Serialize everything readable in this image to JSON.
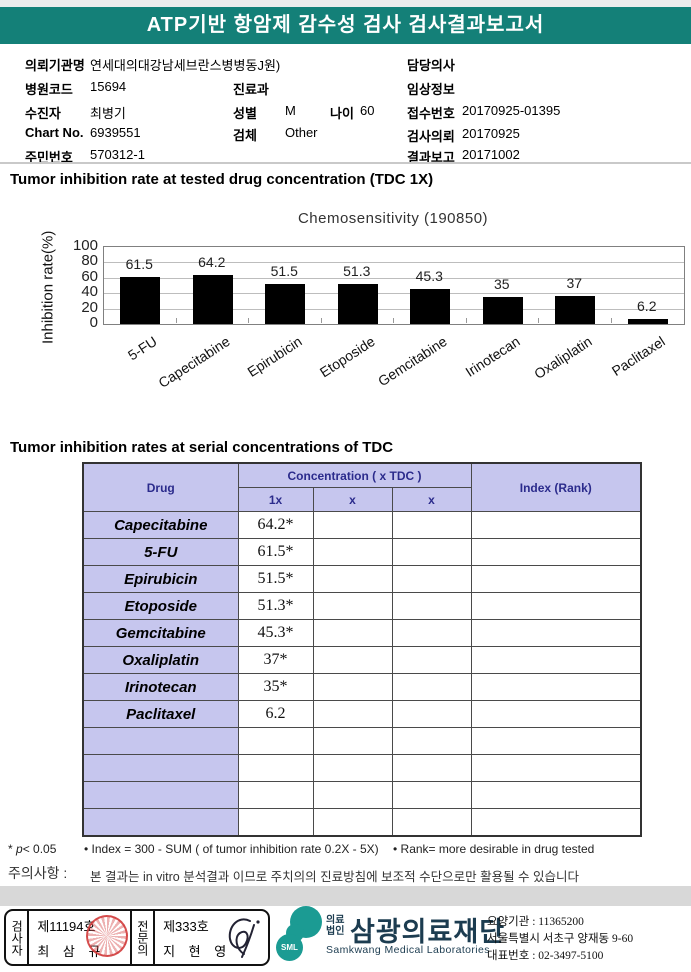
{
  "page": {
    "title_bar": "ATP기반 항암제 감수성 검사 검사결과보고서"
  },
  "patient_info": {
    "org_label": "의뢰기관명",
    "org_value": "연세대의대강남세브란스병병동J원)",
    "hospital_code_label": "병원코드",
    "hospital_code": "15694",
    "patient_label": "수진자",
    "patient_name": "최병기",
    "chart_no_label": "Chart No.",
    "chart_no": "6939551",
    "resident_no_label": "주민번호",
    "resident_no": "570312-1",
    "dept_label": "진료과",
    "dept_value": "",
    "sex_label": "성별",
    "sex_value": "M",
    "age_label": "나이",
    "age_value": "60",
    "specimen_label": "검체",
    "specimen_value": "Other",
    "doctor_label": "담당의사",
    "doctor_value": "",
    "clinical_label": "임상정보",
    "clinical_value": "",
    "receipt_label": "접수번호",
    "receipt_no": "20170925-01395",
    "request_label": "검사의뢰",
    "request_date": "20170925",
    "report_label": "결과보고",
    "report_date": "20171002"
  },
  "section1_title": "Tumor inhibition rate at tested drug concentration (TDC 1X)",
  "chart_data": {
    "type": "bar",
    "title": "Chemosensitivity (190850)",
    "ylabel": "Inhibition rate(%)",
    "categories": [
      "5-FU",
      "Capecitabine",
      "Epirubicin",
      "Etoposide",
      "Gemcitabine",
      "Irinotecan",
      "Oxaliplatin",
      "Paclitaxel"
    ],
    "values": [
      61.5,
      64.2,
      51.5,
      51.3,
      45.3,
      35,
      37,
      6.2
    ],
    "ylim": [
      0,
      100
    ],
    "yticks": [
      0,
      20,
      40,
      60,
      80,
      100
    ],
    "grid": true,
    "bar_color": "#000000",
    "legend": "none"
  },
  "section2_title": "Tumor inhibition rates at serial concentrations of TDC",
  "table": {
    "col_drug": "Drug",
    "col_concentration": "Concentration ( x TDC )",
    "col_index": "Index (Rank)",
    "sub_cols": [
      "1x",
      "x",
      "x"
    ],
    "rows": [
      {
        "drug": "Capecitabine",
        "c1": "64.2*",
        "c2": "",
        "c3": "",
        "index": ""
      },
      {
        "drug": "5-FU",
        "c1": "61.5*",
        "c2": "",
        "c3": "",
        "index": ""
      },
      {
        "drug": "Epirubicin",
        "c1": "51.5*",
        "c2": "",
        "c3": "",
        "index": ""
      },
      {
        "drug": "Etoposide",
        "c1": "51.3*",
        "c2": "",
        "c3": "",
        "index": ""
      },
      {
        "drug": "Gemcitabine",
        "c1": "45.3*",
        "c2": "",
        "c3": "",
        "index": ""
      },
      {
        "drug": "Oxaliplatin",
        "c1": "37*",
        "c2": "",
        "c3": "",
        "index": ""
      },
      {
        "drug": "Irinotecan",
        "c1": "35*",
        "c2": "",
        "c3": "",
        "index": ""
      },
      {
        "drug": "Paclitaxel",
        "c1": "6.2",
        "c2": "",
        "c3": "",
        "index": ""
      },
      {
        "drug": "",
        "c1": "",
        "c2": "",
        "c3": "",
        "index": ""
      },
      {
        "drug": "",
        "c1": "",
        "c2": "",
        "c3": "",
        "index": ""
      },
      {
        "drug": "",
        "c1": "",
        "c2": "",
        "c3": "",
        "index": ""
      },
      {
        "drug": "",
        "c1": "",
        "c2": "",
        "c3": "",
        "index": ""
      }
    ]
  },
  "footnotes": {
    "sig_star": "*",
    "sig_p": "p",
    "sig_rest": "< 0.05",
    "index_note": "• Index = 300 - SUM ( of tumor inhibition rate 0.2X  -  5X)",
    "rank_note": "• Rank= more desirable in drug tested"
  },
  "caution": {
    "label": "주의사항 :",
    "text": "본 결과는 in vitro 분석결과 이므로 주치의의 진료방침에 보조적 수단으로만 활용될 수 있습니다"
  },
  "footer": {
    "examiner_title": "검사자",
    "examiner_cert": "제11194호",
    "examiner_name": "최 삼 규",
    "specialist_title": "전문의",
    "specialist_cert": "제333호",
    "specialist_name": "지 현 영",
    "logo_text": "SML",
    "org_prefix_top": "의료",
    "org_prefix_bottom": "법인",
    "org_name": "삼광의료재단",
    "org_name_en": "Samkwang Medical Laboratories",
    "care_org_no": "요양기관 : 11365200",
    "address": "서울특별시 서초구 양재동 9-60",
    "phone": "대표번호 : 02-3497-5100"
  },
  "colors": {
    "header_teal": "#148078",
    "table_header_bg": "#c6c6ee",
    "table_header_text": "#2b2b8c",
    "bar_color": "#000000",
    "stamp_red": "#d23c3c",
    "logo_teal": "#1b9b93",
    "org_name_navy": "#1c3c50"
  }
}
